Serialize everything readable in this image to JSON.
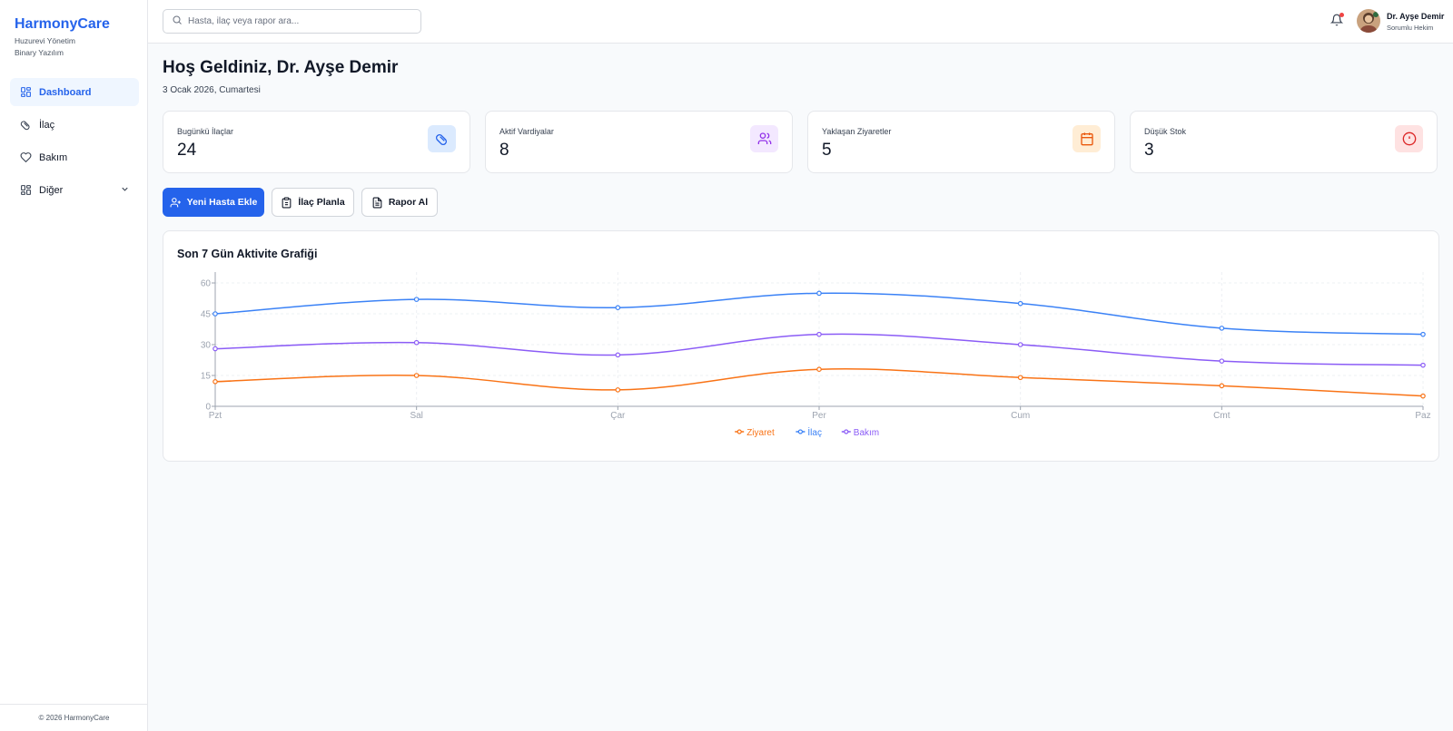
{
  "sidebar": {
    "brand_title": "HarmonyCare",
    "brand_sub1": "Huzurevi Yönetim",
    "brand_sub2": "Binary Yazılım",
    "items": [
      {
        "label": "Dashboard",
        "icon": "grid-icon"
      },
      {
        "label": "İlaç",
        "icon": "pill-icon"
      },
      {
        "label": "Bakım",
        "icon": "heart-icon"
      },
      {
        "label": "Diğer",
        "icon": "grid-icon"
      }
    ],
    "footer": "© 2026 HarmonyCare"
  },
  "topbar": {
    "search_placeholder": "Hasta, ilaç veya rapor ara...",
    "user_name": "Dr. Ayşe Demir",
    "user_role": "Sorumlu Hekim"
  },
  "page": {
    "title": "Hoş Geldiniz, Dr. Ayşe Demir",
    "date": "3 Ocak 2026, Cumartesi"
  },
  "stats": [
    {
      "label": "Bugünkü İlaçlar",
      "value": "24",
      "icon": "pill-icon",
      "color": "#2563eb",
      "bg": "#dbeafe"
    },
    {
      "label": "Aktif Vardiyalar",
      "value": "8",
      "icon": "users-icon",
      "color": "#9333ea",
      "bg": "#f3e8ff"
    },
    {
      "label": "Yaklaşan Ziyaretler",
      "value": "5",
      "icon": "calendar-icon",
      "color": "#ea580c",
      "bg": "#ffedd5"
    },
    {
      "label": "Düşük Stok",
      "value": "3",
      "icon": "alert-icon",
      "color": "#dc2626",
      "bg": "#fee2e2"
    }
  ],
  "actions": {
    "new_patient": "Yeni Hasta Ekle",
    "plan_med": "İlaç Planla",
    "report": "Rapor Al"
  },
  "chart_title": "Son 7 Gün Aktivite Grafiği",
  "chart_data": {
    "type": "line",
    "categories": [
      "Pzt",
      "Sal",
      "Çar",
      "Per",
      "Cum",
      "Cmt",
      "Paz"
    ],
    "ylim": [
      0,
      60
    ],
    "yticks": [
      0,
      15,
      30,
      45,
      60
    ],
    "grid": true,
    "legend": "bottom-center",
    "series": [
      {
        "name": "Ziyaret",
        "color": "#f97316",
        "values": [
          12,
          15,
          8,
          18,
          14,
          10,
          5
        ]
      },
      {
        "name": "İlaç",
        "color": "#3b82f6",
        "values": [
          45,
          52,
          48,
          55,
          50,
          38,
          35
        ]
      },
      {
        "name": "Bakım",
        "color": "#8b5cf6",
        "values": [
          28,
          31,
          25,
          35,
          30,
          22,
          20
        ]
      }
    ]
  }
}
